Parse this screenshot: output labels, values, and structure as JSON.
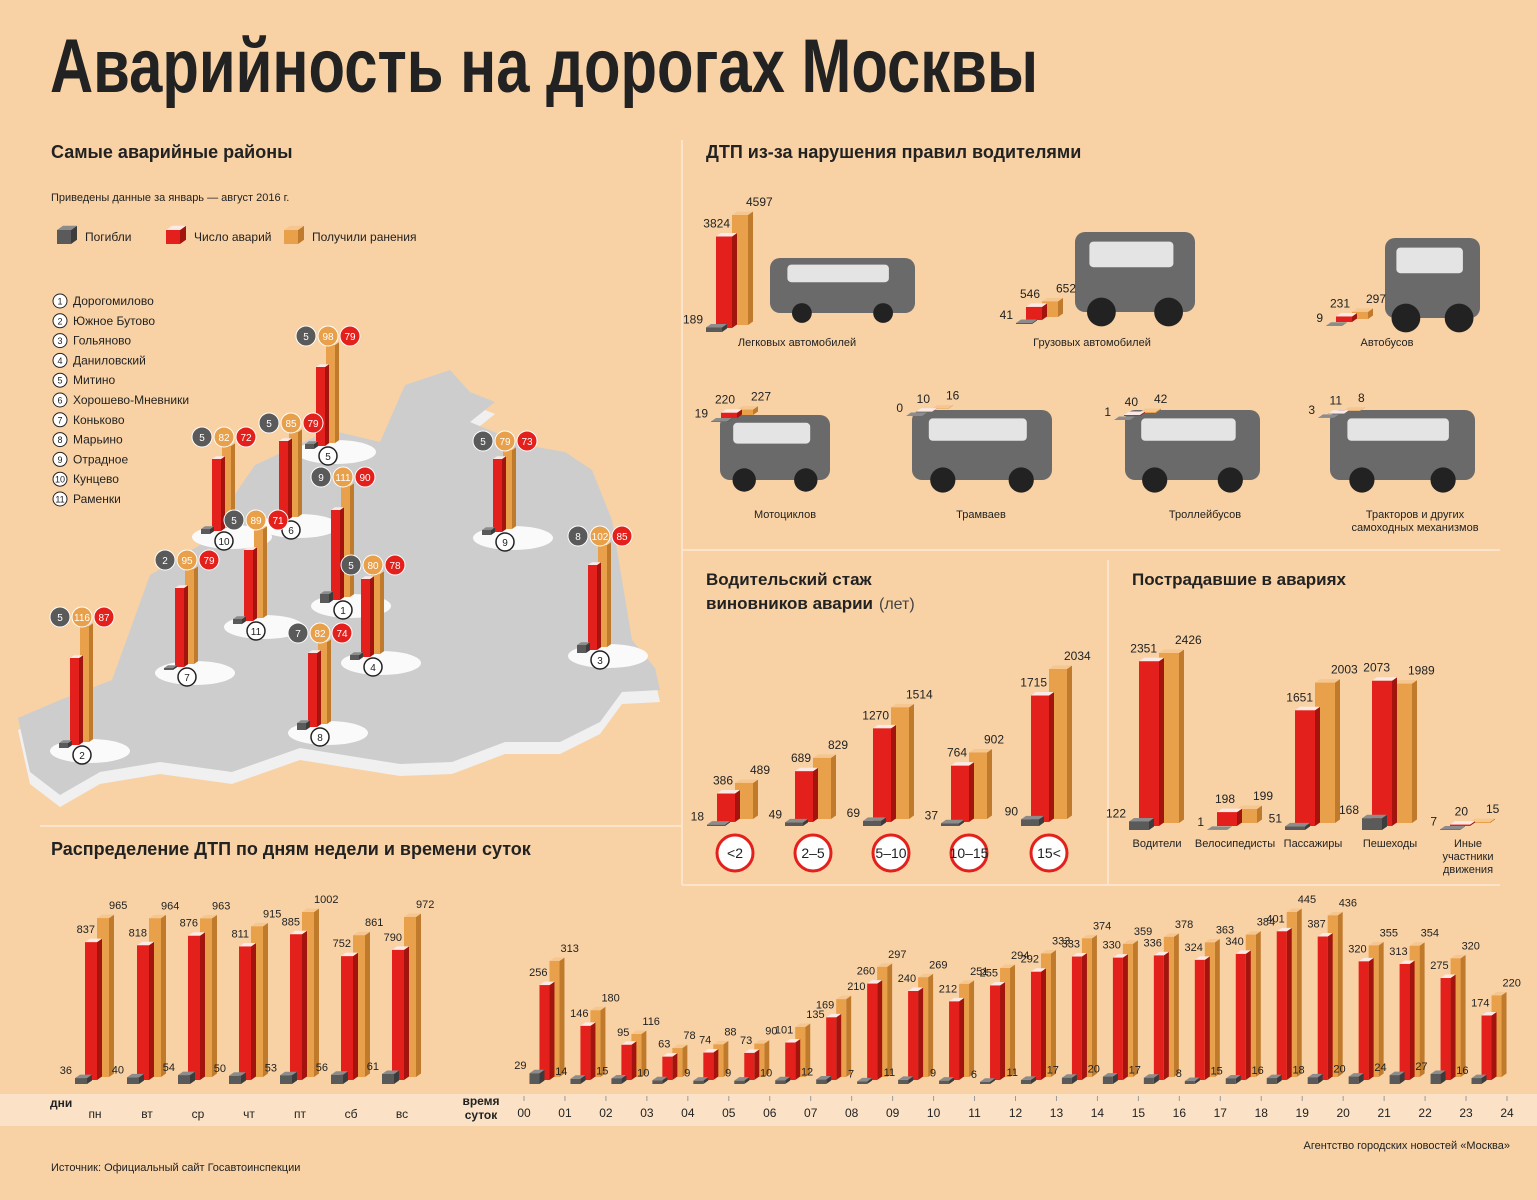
{
  "title": "Аварийность на дорогах Москвы",
  "source": "Источник: Официальный сайт Госавтоинспекции",
  "agency": "Агентство городских новостей «Москва»",
  "legend": [
    {
      "name": "Погибли",
      "color": "#5a5a5a"
    },
    {
      "name": "Число аварий",
      "color": "#e3201b"
    },
    {
      "name": "Получили ранения",
      "color": "#e9a04b"
    }
  ],
  "chart_data": [
    {
      "type": "map-bar",
      "title": "Самые аварийные районы",
      "subtitle": "Приведены данные за январь — август 2016 г.",
      "district_numbers": [
        1,
        2,
        3,
        4,
        5,
        6,
        7,
        8,
        9,
        10,
        11
      ],
      "categories": [
        "Дорогомилово",
        "Южное Бутово",
        "Гольяново",
        "Даниловский",
        "Митино",
        "Хорошево-Мневники",
        "Коньково",
        "Марьино",
        "Отрадное",
        "Кунцево",
        "Раменки"
      ],
      "series": [
        {
          "values": [
            9,
            5,
            8,
            5,
            5,
            5,
            2,
            7,
            5,
            5,
            5
          ]
        },
        {
          "values": [
            90,
            87,
            85,
            78,
            79,
            79,
            79,
            74,
            73,
            72,
            71
          ]
        },
        {
          "values": [
            111,
            116,
            102,
            80,
            98,
            85,
            95,
            82,
            79,
            82,
            89
          ]
        }
      ]
    },
    {
      "type": "bar",
      "title": "ДТП из-за нарушения правил водителями",
      "categories": [
        "Легковых автомобилей",
        "Грузовых автомобилей",
        "Автобусов",
        "Мотоциклов",
        "Трамваев",
        "Троллейбусов",
        "Тракторов и других самоходных механизмов"
      ],
      "series": [
        {
          "values": [
            189,
            41,
            9,
            19,
            0,
            1,
            3
          ]
        },
        {
          "values": [
            3824,
            546,
            231,
            220,
            10,
            40,
            11
          ]
        },
        {
          "values": [
            4597,
            652,
            297,
            227,
            16,
            42,
            8
          ]
        }
      ]
    },
    {
      "type": "bar",
      "title": "Водительский стаж виновников аварии",
      "unit": "(лет)",
      "categories": [
        "<2",
        "2–5",
        "5–10",
        "10–15",
        "15<"
      ],
      "series": [
        {
          "values": [
            18,
            49,
            69,
            37,
            90
          ]
        },
        {
          "values": [
            386,
            689,
            1270,
            764,
            1715
          ]
        },
        {
          "values": [
            489,
            829,
            1514,
            902,
            2034
          ]
        }
      ]
    },
    {
      "type": "bar",
      "title": "Пострадавшие в авариях",
      "categories": [
        "Водители",
        "Велосипедисты",
        "Пассажиры",
        "Пешеходы",
        "Иные участники движения"
      ],
      "series": [
        {
          "values": [
            122,
            1,
            51,
            168,
            7
          ]
        },
        {
          "values": [
            2351,
            198,
            1651,
            2073,
            20
          ]
        },
        {
          "values": [
            2426,
            199,
            2003,
            1989,
            15
          ]
        }
      ]
    },
    {
      "type": "bar",
      "title": "Распределение ДТП по дням недели и времени суток",
      "x_label": "дни",
      "categories": [
        "пн",
        "вт",
        "ср",
        "чт",
        "пт",
        "сб",
        "вс"
      ],
      "series": [
        {
          "values": [
            36,
            40,
            54,
            50,
            53,
            56,
            61
          ]
        },
        {
          "values": [
            837,
            818,
            876,
            811,
            885,
            752,
            790
          ]
        },
        {
          "values": [
            965,
            964,
            963,
            915,
            1002,
            861,
            972
          ]
        }
      ]
    },
    {
      "type": "histogram",
      "x_label": "время суток",
      "xlim": [
        0,
        24
      ],
      "xticks": [
        {
          "value": 0,
          "label": "00"
        },
        {
          "value": 1,
          "label": "01"
        },
        {
          "value": 2,
          "label": "02"
        },
        {
          "value": 3,
          "label": "03"
        },
        {
          "value": 4,
          "label": "04"
        },
        {
          "value": 5,
          "label": "05"
        },
        {
          "value": 6,
          "label": "06"
        },
        {
          "value": 7,
          "label": "07"
        },
        {
          "value": 8,
          "label": "08"
        },
        {
          "value": 9,
          "label": "09"
        },
        10,
        11,
        12,
        13,
        14,
        15,
        16,
        17,
        18,
        19,
        20,
        21,
        22,
        23,
        24
      ],
      "bins": [
        0,
        1,
        2,
        3,
        4,
        5,
        6,
        7,
        8,
        9,
        10,
        11,
        12,
        13,
        14,
        15,
        16,
        17,
        18,
        19,
        20,
        21,
        22,
        23,
        24
      ],
      "series": [
        {
          "values": [
            29,
            14,
            15,
            10,
            9,
            9,
            10,
            12,
            7,
            11,
            9,
            6,
            11,
            17,
            20,
            17,
            8,
            15,
            16,
            18,
            20,
            24,
            27,
            16
          ]
        },
        {
          "values": [
            256,
            146,
            95,
            63,
            74,
            73,
            101,
            169,
            260,
            240,
            212,
            255,
            292,
            333,
            330,
            336,
            324,
            340,
            401,
            387,
            320,
            313,
            275,
            174
          ]
        },
        {
          "values": [
            313,
            180,
            116,
            78,
            88,
            90,
            135,
            210,
            297,
            269,
            251,
            294,
            333,
            374,
            359,
            378,
            363,
            384,
            445,
            436,
            355,
            354,
            320,
            220
          ]
        }
      ]
    }
  ]
}
